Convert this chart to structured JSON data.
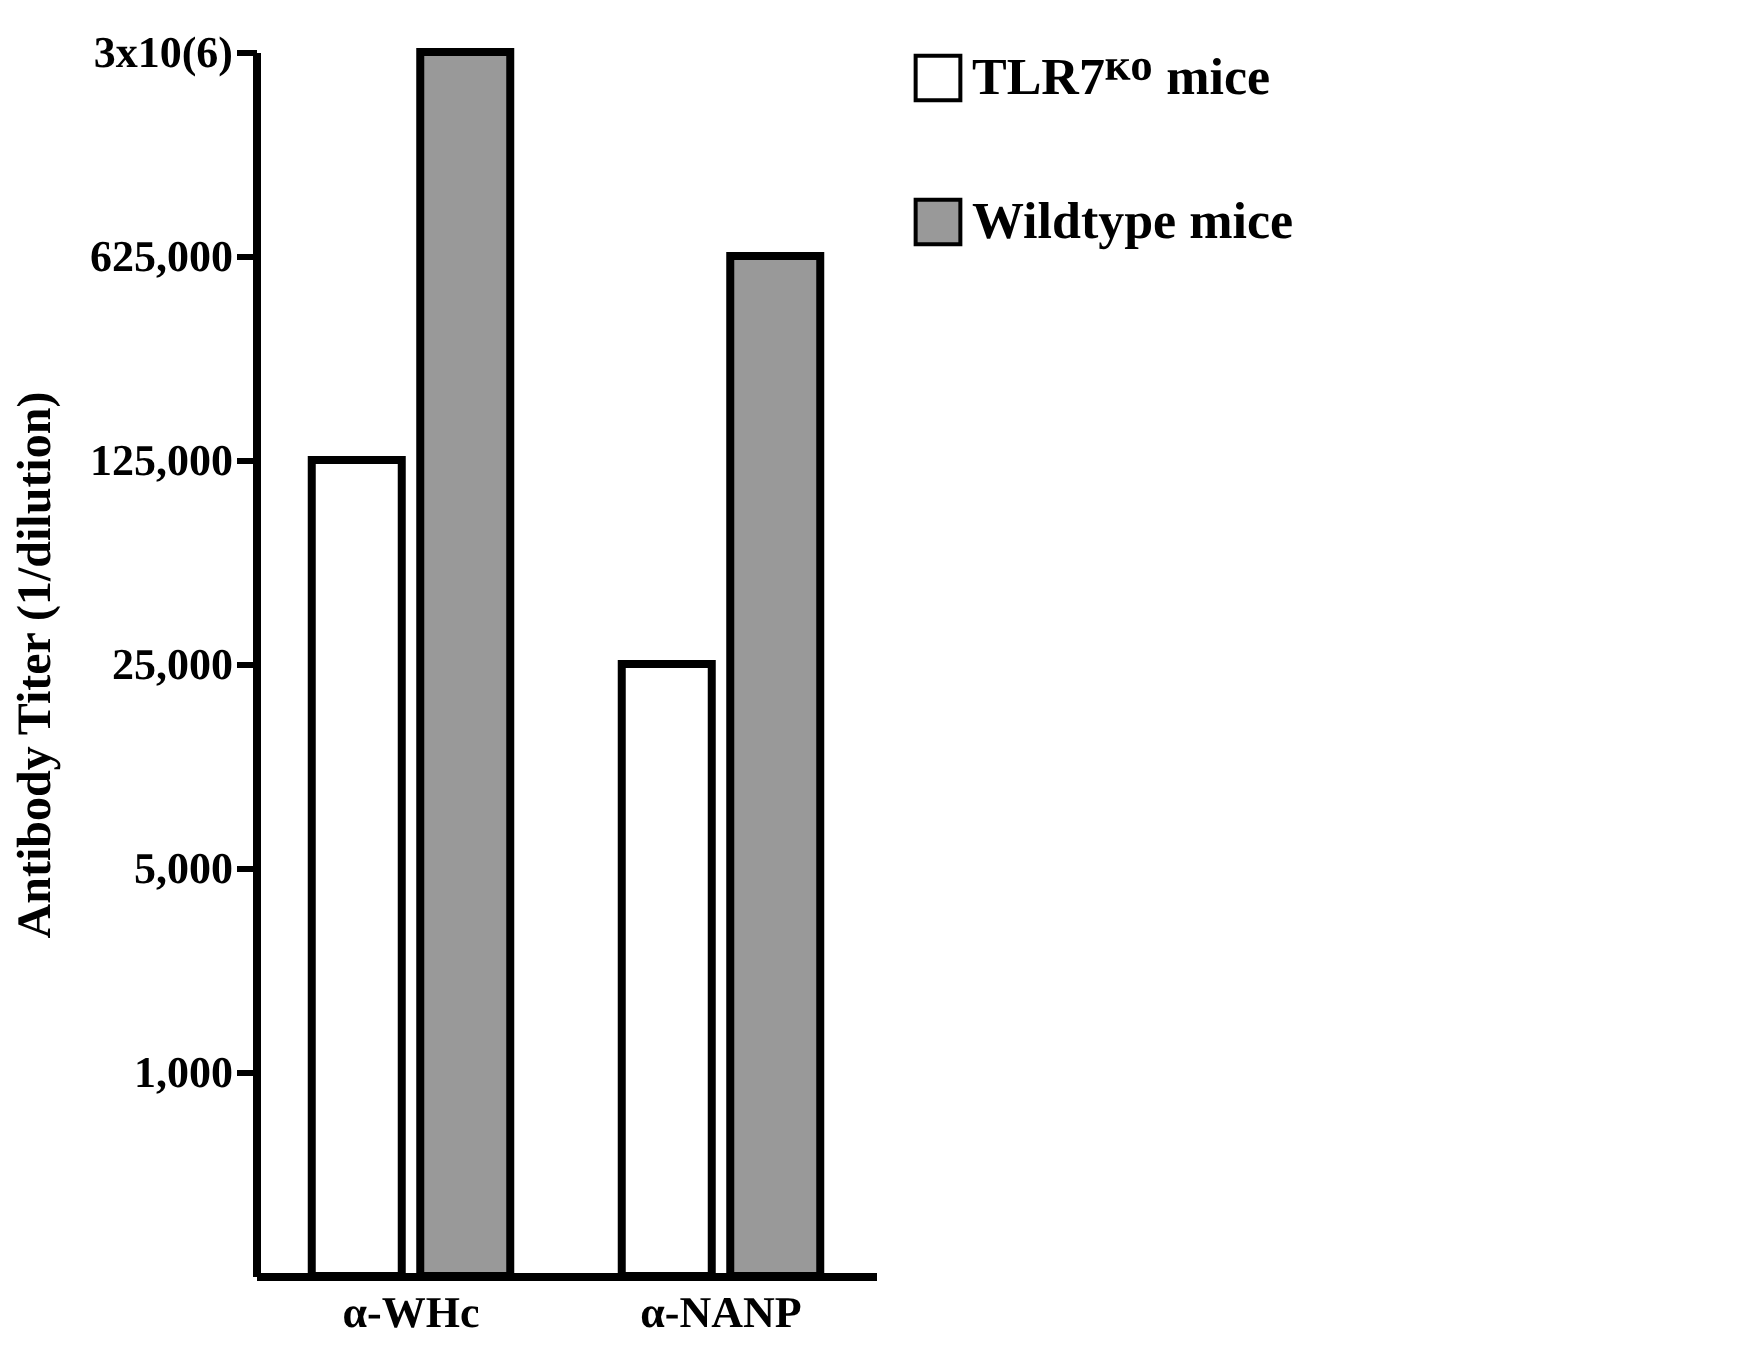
{
  "chart_data": {
    "type": "bar",
    "ylabel": "Antibody Titer (1/dilution)",
    "categories": [
      "α-WHc",
      "α-NANP"
    ],
    "series": [
      {
        "name": "TLR7ᴷᴼ mice",
        "color": "#ffffff",
        "values": [
          125000,
          25000
        ]
      },
      {
        "name": "Wildtype mice",
        "color": "#999999",
        "values": [
          3125000,
          625000
        ]
      }
    ],
    "log": true,
    "ylim": [
      200,
      3125000
    ],
    "yticks": [
      {
        "value": 1000,
        "label": "1,000"
      },
      {
        "value": 5000,
        "label": "5,000"
      },
      {
        "value": 25000,
        "label": "25,000"
      },
      {
        "value": 125000,
        "label": "125,000"
      },
      {
        "value": 625000,
        "label": "625,000"
      },
      {
        "value": 3125000,
        "label": "3x10(6)"
      }
    ],
    "grid": false,
    "legend": "right"
  }
}
